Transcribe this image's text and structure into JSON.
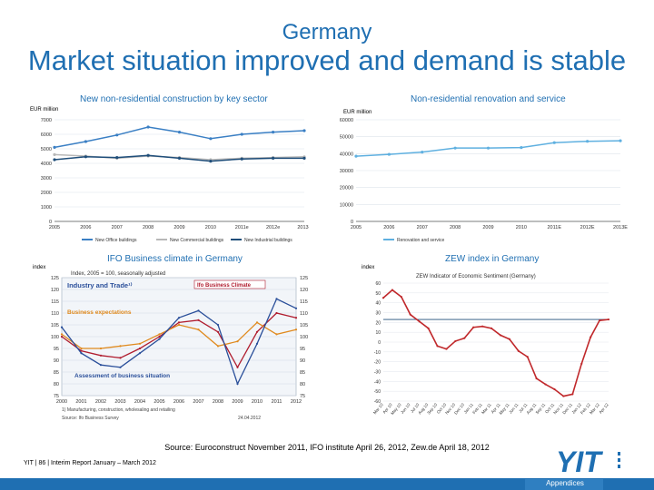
{
  "header": {
    "country": "Germany",
    "title": "Market situation improved and demand is stable"
  },
  "source_note": "Source: Euroconstruct November 2011, IFO institute April 26, 2012, Zew.de April 18, 2012",
  "footer": {
    "company": "YIT",
    "page": "86",
    "report": "Interim Report January – March 2012"
  },
  "appendix_label": "Appendices",
  "logo_text": "YIT",
  "colors": {
    "brand_blue": "#1f6fb2",
    "office": "#3a7fc4",
    "commercial": "#b8b8b8",
    "industrial": "#1f4e7a",
    "renovation": "#5fb0e0",
    "zew_line": "#c0282b",
    "ifo_blue": "#2a4f9a",
    "ifo_red": "#b01c2e",
    "ifo_orange": "#e08a1e"
  },
  "chart_data": [
    {
      "id": "nonres",
      "type": "line",
      "title": "New non-residential construction by key sector",
      "unit": "EUR million",
      "categories": [
        "2005",
        "2006",
        "2007",
        "2008",
        "2009",
        "2010",
        "2011e",
        "2012e",
        "2013e"
      ],
      "ylim": [
        0,
        7000
      ],
      "yticks": [
        0,
        1000,
        2000,
        3000,
        4000,
        5000,
        6000,
        7000
      ],
      "grid": true,
      "legend": "bottom",
      "series": [
        {
          "name": "New Office buildings",
          "values": [
            5100,
            5500,
            5950,
            6500,
            6150,
            5700,
            6000,
            6150,
            6250
          ]
        },
        {
          "name": "New Commercial buildings",
          "values": [
            4600,
            4500,
            4350,
            4500,
            4400,
            4250,
            4350,
            4400,
            4450
          ]
        },
        {
          "name": "New Industrial buildings",
          "values": [
            4250,
            4450,
            4400,
            4550,
            4350,
            4150,
            4300,
            4350,
            4350
          ]
        }
      ]
    },
    {
      "id": "renov",
      "type": "line",
      "title": "Non-residential renovation and service",
      "unit": "EUR million",
      "categories": [
        "2005",
        "2006",
        "2007",
        "2008",
        "2009",
        "2010",
        "2011E",
        "2012E",
        "2013E"
      ],
      "ylim": [
        0,
        60000
      ],
      "yticks": [
        0,
        10000,
        20000,
        30000,
        40000,
        50000,
        60000
      ],
      "grid": true,
      "legend": "bottom",
      "series": [
        {
          "name": "Renovation and service",
          "values": [
            38500,
            39600,
            40900,
            43300,
            43300,
            43600,
            46500,
            47300,
            47600
          ]
        }
      ]
    },
    {
      "id": "ifo",
      "type": "line",
      "title": "IFO Business climate in Germany",
      "unit": "index",
      "subtitle": "Index, 2005 = 100, seasonally adjusted",
      "panel_label": "Industry and Trade¹⁾",
      "legend_items": [
        "Ifo Business Climate",
        "Business expectations",
        "Assessment of business situation"
      ],
      "categories": [
        "2000",
        "2001",
        "2002",
        "2003",
        "2004",
        "2005",
        "2006",
        "2007",
        "2008",
        "2009",
        "2010",
        "2011",
        "2012"
      ],
      "ylim": [
        75,
        125
      ],
      "yticks": [
        75,
        80,
        85,
        90,
        95,
        100,
        105,
        110,
        115,
        120,
        125
      ],
      "right_yticks": [
        75,
        80,
        85,
        90,
        95,
        100,
        105,
        110,
        115,
        120,
        125
      ],
      "footnote": "1) Manufacturing, construction, wholesaling and retailing",
      "source": "Source: Ifo Business Survey",
      "date": "24.04.2012",
      "series": [
        {
          "name": "Ifo Business Climate",
          "values": [
            100,
            94,
            92,
            91,
            95,
            100,
            106,
            107,
            102,
            87,
            102,
            110,
            108
          ]
        },
        {
          "name": "Business expectations",
          "values": [
            101,
            95,
            95,
            96,
            97,
            101,
            105,
            103,
            96,
            98,
            106,
            101,
            103
          ]
        },
        {
          "name": "Assessment of business situation",
          "values": [
            104,
            93,
            88,
            87,
            93,
            99,
            108,
            111,
            105,
            80,
            97,
            116,
            112
          ]
        }
      ]
    },
    {
      "id": "zew",
      "type": "line",
      "title": "ZEW index in Germany",
      "unit": "index",
      "inner_title": "ZEW Indicator of Economic Sentiment (Germany)",
      "ylim": [
        -60,
        60
      ],
      "yticks": [
        60,
        50,
        40,
        30,
        20,
        10,
        0,
        -10,
        -20,
        -30,
        -40,
        -50,
        -60
      ],
      "grid": true,
      "reference_line": 23,
      "x_labels": [
        "Mar 10",
        "Apr 10",
        "May 10",
        "Jun 10",
        "Jul 10",
        "Aug 10",
        "Sep 10",
        "Oct 10",
        "Nov 10",
        "Dec 10",
        "Jan 11",
        "Feb 11",
        "Mar 11",
        "Apr 11",
        "May 11",
        "Jun 11",
        "Jul 11",
        "Aug 11",
        "Sep 11",
        "Oct 11",
        "Nov 11",
        "Dec 11",
        "Jan 12",
        "Feb 12",
        "Mar 12",
        "Apr 12"
      ],
      "series": [
        {
          "name": "ZEW Indicator of Economic Sentiment",
          "values": [
            45,
            53,
            46,
            28,
            21,
            14,
            -4,
            -7,
            1,
            4,
            15,
            16,
            14,
            7,
            3,
            -9,
            -15,
            -37,
            -43,
            -48,
            -55,
            -53,
            -22,
            5,
            22,
            23
          ]
        }
      ]
    }
  ]
}
